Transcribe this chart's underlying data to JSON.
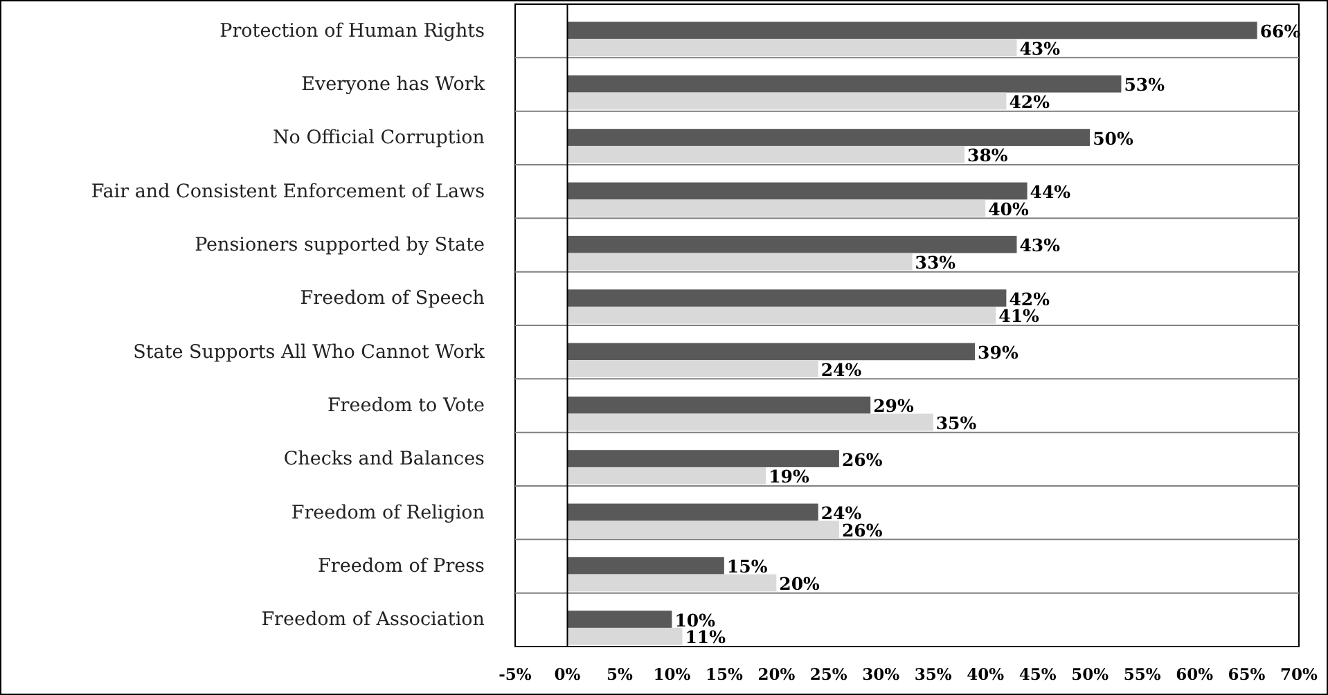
{
  "chart_data": {
    "type": "bar",
    "orientation": "horizontal",
    "categories": [
      "Protection of Human Rights",
      "Everyone has Work",
      "No Official Corruption",
      "Fair and Consistent Enforcement of Laws",
      "Pensioners supported by State",
      "Freedom of Speech",
      "State Supports All Who Cannot Work",
      "Freedom to Vote",
      "Checks and Balances",
      "Freedom of Religion",
      "Freedom of Press",
      "Freedom of Association"
    ],
    "series": [
      {
        "color": "#595959",
        "values": [
          66,
          53,
          50,
          44,
          43,
          42,
          39,
          29,
          26,
          24,
          15,
          10
        ],
        "value_labels": [
          "66%",
          "53%",
          "50%",
          "44%",
          "43%",
          "42%",
          "39%",
          "29%",
          "26%",
          "24%",
          "15%",
          "10%"
        ]
      },
      {
        "color": "#d9d9d9",
        "values": [
          43,
          42,
          38,
          40,
          33,
          41,
          24,
          35,
          19,
          26,
          20,
          11
        ],
        "value_labels": [
          "43%",
          "42%",
          "38%",
          "40%",
          "33%",
          "41%",
          "24%",
          "35%",
          "19%",
          "26%",
          "20%",
          "11%"
        ]
      }
    ],
    "xlim": [
      -5,
      70
    ],
    "xticks": [
      {
        "value": -5,
        "label": "-5%"
      },
      {
        "value": 0,
        "label": "0%"
      },
      {
        "value": 5,
        "label": "5%"
      },
      {
        "value": 10,
        "label": "10%"
      },
      {
        "value": 15,
        "label": "15%"
      },
      {
        "value": 20,
        "label": "20%"
      },
      {
        "value": 25,
        "label": "25%"
      },
      {
        "value": 30,
        "label": "30%"
      },
      {
        "value": 35,
        "label": "35%"
      },
      {
        "value": 40,
        "label": "40%"
      },
      {
        "value": 45,
        "label": "45%"
      },
      {
        "value": 50,
        "label": "50%"
      },
      {
        "value": 55,
        "label": "55%"
      },
      {
        "value": 60,
        "label": "60%"
      },
      {
        "value": 65,
        "label": "65%"
      },
      {
        "value": 70,
        "label": "70%"
      }
    ],
    "grid": "y"
  }
}
